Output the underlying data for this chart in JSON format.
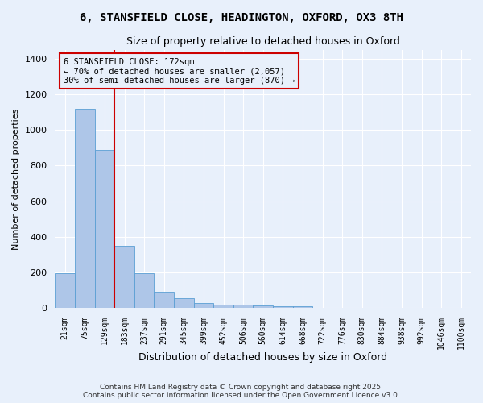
{
  "title1": "6, STANSFIELD CLOSE, HEADINGTON, OXFORD, OX3 8TH",
  "title2": "Size of property relative to detached houses in Oxford",
  "xlabel": "Distribution of detached houses by size in Oxford",
  "ylabel": "Number of detached properties",
  "bar_values": [
    197,
    1120,
    890,
    350,
    197,
    90,
    55,
    25,
    20,
    18,
    15,
    10,
    8,
    0,
    0,
    0,
    0,
    0,
    0,
    0,
    0
  ],
  "bar_labels": [
    "21sqm",
    "75sqm",
    "129sqm",
    "183sqm",
    "237sqm",
    "291sqm",
    "345sqm",
    "399sqm",
    "452sqm",
    "506sqm",
    "560sqm",
    "614sqm",
    "668sqm",
    "722sqm",
    "776sqm",
    "830sqm",
    "884sqm",
    "938sqm",
    "992sqm",
    "1046sqm",
    "1100sqm"
  ],
  "bar_color": "#aec6e8",
  "bar_edge_color": "#5a9fd4",
  "bg_color": "#e8f0fb",
  "grid_color": "#ffffff",
  "vline_color": "#cc0000",
  "vline_pos": 2.5,
  "annotation_text": "6 STANSFIELD CLOSE: 172sqm\n← 70% of detached houses are smaller (2,057)\n30% of semi-detached houses are larger (870) →",
  "annotation_box_color": "#cc0000",
  "footer": "Contains HM Land Registry data © Crown copyright and database right 2025.\nContains public sector information licensed under the Open Government Licence v3.0.",
  "ylim": [
    0,
    1450
  ],
  "yticks": [
    0,
    200,
    400,
    600,
    800,
    1000,
    1200,
    1400
  ]
}
